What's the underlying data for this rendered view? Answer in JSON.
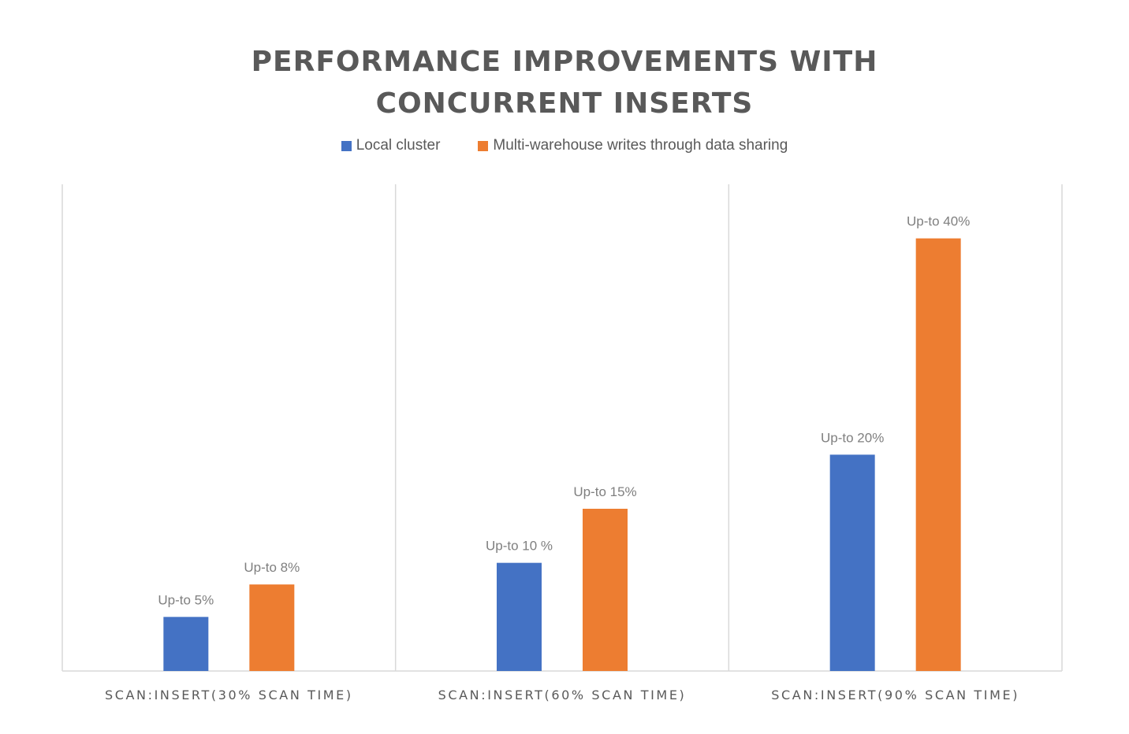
{
  "chart_data": {
    "type": "bar",
    "title": "PERFORMANCE IMPROVEMENTS WITH CONCURRENT INSERTS",
    "title_lines": [
      "PERFORMANCE IMPROVEMENTS WITH",
      "CONCURRENT INSERTS"
    ],
    "xlabel": "",
    "ylabel": "",
    "ylim": [
      0,
      45
    ],
    "grid": false,
    "legend_position": "top",
    "categories": [
      "SCAN:INSERT(30% SCAN TIME)",
      "SCAN:INSERT(60% SCAN TIME)",
      "SCAN:INSERT(90% SCAN TIME)"
    ],
    "series": [
      {
        "name": "Local cluster",
        "color": "#4472c4",
        "values": [
          5,
          10,
          20
        ],
        "labels": [
          "Up-to 5%",
          "Up-to 10 %",
          "Up-to 20%"
        ]
      },
      {
        "name": "Multi-warehouse writes through data sharing",
        "color": "#ed7d31",
        "values": [
          8,
          15,
          40
        ],
        "labels": [
          "Up-to 8%",
          "Up-to 15%",
          "Up-to 40%"
        ]
      }
    ]
  }
}
